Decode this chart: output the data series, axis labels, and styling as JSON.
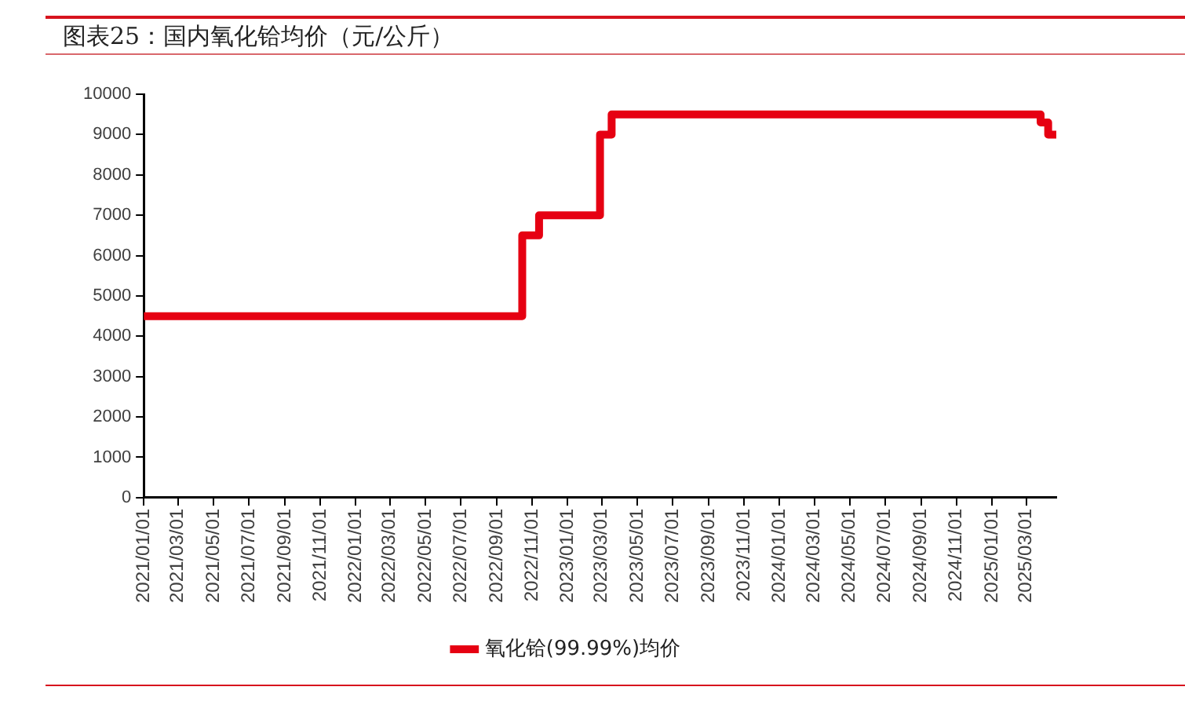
{
  "chart_data": {
    "type": "step",
    "title": "图表25：国内氧化铪均价（元/公斤）",
    "x": [
      "2021-01-01",
      "2022-10-15",
      "2022-11-13",
      "2023-02-26",
      "2023-03-18",
      "2025-03-26",
      "2025-04-08",
      "2025-04-22"
    ],
    "series": [
      {
        "name": "氧化铪(99.99%)均价",
        "color": "#e60012",
        "values": [
          4500,
          6500,
          7000,
          9000,
          9500,
          9300,
          9000,
          9000
        ]
      }
    ],
    "xlim": [
      "2021-01-01",
      "2025-04-22"
    ],
    "xticks": [
      {
        "value": "2021-01-01",
        "label": "2021/01/01"
      },
      {
        "value": "2021-03-01",
        "label": "2021/03/01"
      },
      {
        "value": "2021-05-01",
        "label": "2021/05/01"
      },
      {
        "value": "2021-07-01",
        "label": "2021/07/01"
      },
      {
        "value": "2021-09-01",
        "label": "2021/09/01"
      },
      {
        "value": "2021-11-01",
        "label": "2021/11/01"
      },
      {
        "value": "2022-01-01",
        "label": "2022/01/01"
      },
      {
        "value": "2022-03-01",
        "label": "2022/03/01"
      },
      {
        "value": "2022-05-01",
        "label": "2022/05/01"
      },
      {
        "value": "2022-07-01",
        "label": "2022/07/01"
      },
      {
        "value": "2022-09-01",
        "label": "2022/09/01"
      },
      {
        "value": "2022-11-01",
        "label": "2022/11/01"
      },
      {
        "value": "2023-01-01",
        "label": "2023/01/01"
      },
      {
        "value": "2023-03-01",
        "label": "2023/03/01"
      },
      {
        "value": "2023-05-01",
        "label": "2023/05/01"
      },
      {
        "value": "2023-07-01",
        "label": "2023/07/01"
      },
      {
        "value": "2023-09-01",
        "label": "2023/09/01"
      },
      {
        "value": "2023-11-01",
        "label": "2023/11/01"
      },
      {
        "value": "2024-01-01",
        "label": "2024/01/01"
      },
      {
        "value": "2024-03-01",
        "label": "2024/03/01"
      },
      {
        "value": "2024-05-01",
        "label": "2024/05/01"
      },
      {
        "value": "2024-07-01",
        "label": "2024/07/01"
      },
      {
        "value": "2024-09-01",
        "label": "2024/09/01"
      },
      {
        "value": "2024-11-01",
        "label": "2024/11/01"
      },
      {
        "value": "2025-01-01",
        "label": "2025/01/01"
      },
      {
        "value": "2025-03-01",
        "label": "2025/03/01"
      }
    ],
    "ylim": [
      0,
      10000
    ],
    "yticks": [
      0,
      1000,
      2000,
      3000,
      4000,
      5000,
      6000,
      7000,
      8000,
      9000,
      10000
    ],
    "legend": "bottom"
  }
}
